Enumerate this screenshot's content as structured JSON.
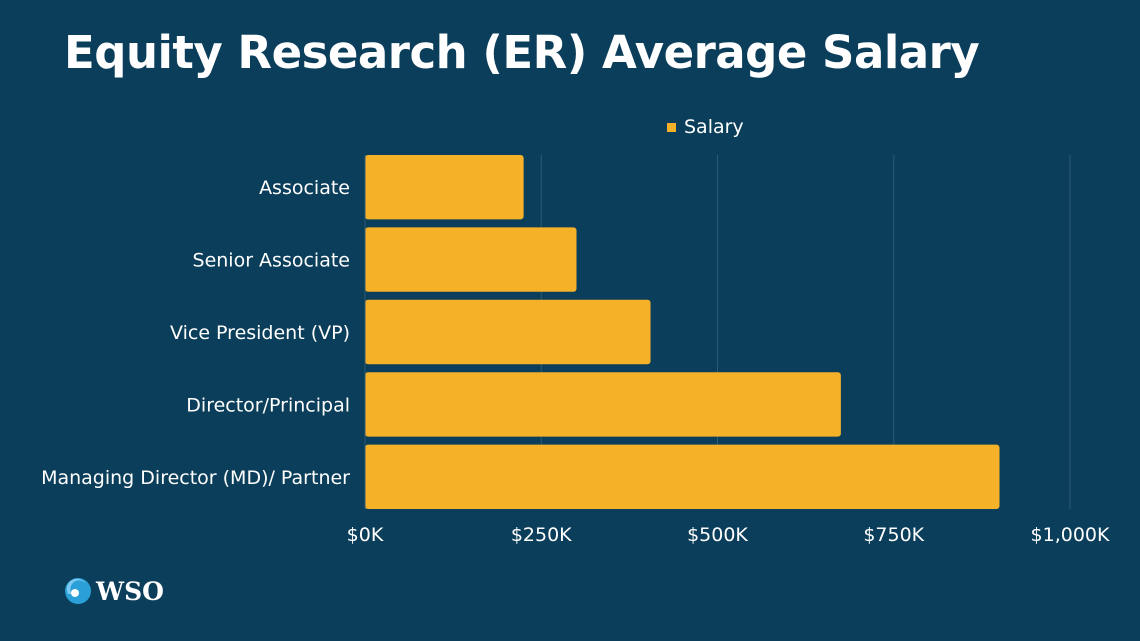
{
  "chart_data": {
    "type": "bar",
    "orientation": "horizontal",
    "title": "Equity Research (ER) Average Salary",
    "categories": [
      "Associate",
      "Senior Associate",
      "Vice President (VP)",
      "Director/Principal",
      "Managing Director (MD)/ Partner"
    ],
    "series": [
      {
        "name": "Salary",
        "values": [
          225,
          300,
          405,
          675,
          900
        ],
        "color": "#f5b128"
      }
    ],
    "value_unit": "thousands USD",
    "xlim": [
      0,
      1000
    ],
    "xticks": [
      0,
      250,
      500,
      750,
      1000
    ],
    "xtick_labels": [
      "$0K",
      "$250K",
      "$500K",
      "$750K",
      "$1,000K"
    ],
    "grid": "vertical",
    "legend": "top"
  },
  "colors": {
    "background": "#0b3e5a",
    "bar": "#f5b128",
    "grid": "#2d5a73"
  },
  "logo": {
    "text": "WSO",
    "icon": "globe-logo-icon"
  }
}
